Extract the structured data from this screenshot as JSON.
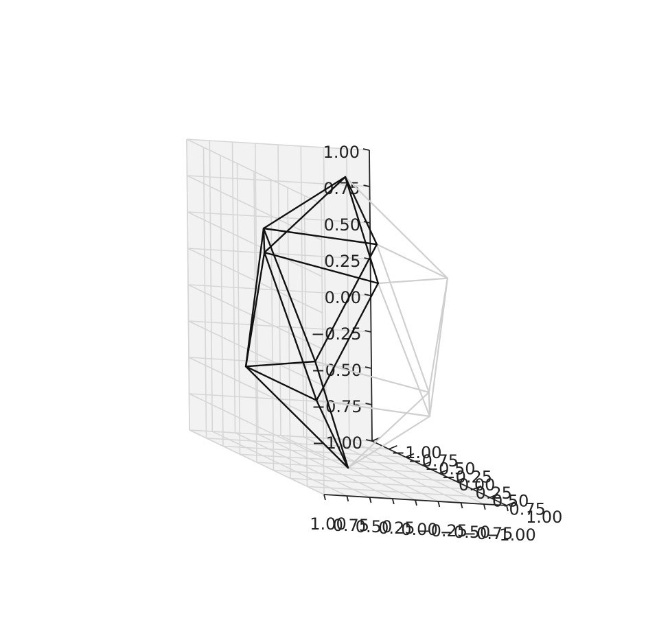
{
  "chart_data": {
    "type": "3d-wireframe",
    "title": "",
    "xlabel": "",
    "ylabel": "",
    "zlabel": "",
    "xlim": [
      -1,
      1
    ],
    "ylim": [
      -1,
      1
    ],
    "zlim": [
      -1,
      1
    ],
    "x_ticks": [
      "−1.00",
      "−0.75",
      "−0.50",
      "−0.25",
      "0.00",
      "0.25",
      "0.50",
      "0.75",
      "1.00"
    ],
    "y_ticks": [
      "−1.00",
      "−0.75",
      "−0.50",
      "−0.25",
      "0.00",
      "0.25",
      "0.50",
      "0.75",
      "1.00"
    ],
    "z_ticks": [
      "−1.00",
      "−0.75",
      "−0.50",
      "−0.25",
      "0.00",
      "0.25",
      "0.50",
      "0.75",
      "1.00"
    ],
    "grid": true,
    "shape": "icosahedron",
    "vertices": [
      [
        0.0,
        0.0,
        1.0
      ],
      [
        0.894,
        0.0,
        0.447
      ],
      [
        0.276,
        0.851,
        0.447
      ],
      [
        -0.724,
        0.526,
        0.447
      ],
      [
        -0.724,
        -0.526,
        0.447
      ],
      [
        0.276,
        -0.851,
        0.447
      ],
      [
        0.724,
        0.526,
        -0.447
      ],
      [
        -0.276,
        0.851,
        -0.447
      ],
      [
        -0.894,
        0.0,
        -0.447
      ],
      [
        -0.276,
        -0.851,
        -0.447
      ],
      [
        0.724,
        -0.526,
        -0.447
      ],
      [
        0.0,
        0.0,
        -1.0
      ]
    ],
    "edge_color": "#000000",
    "hidden_edge_color": "#cccccc"
  }
}
